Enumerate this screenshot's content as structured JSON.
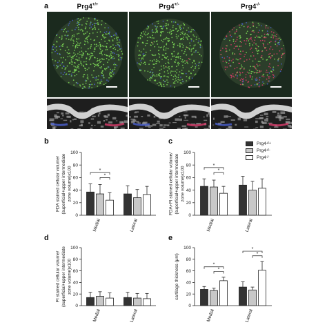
{
  "panel_labels": [
    "a",
    "b",
    "c",
    "d",
    "e"
  ],
  "genotypes": [
    {
      "base": "Prg4",
      "sup": "+/+"
    },
    {
      "base": "Prg4",
      "sup": "+/-"
    },
    {
      "base": "Prg4",
      "sup": "-/-"
    }
  ],
  "legend": {
    "items": [
      {
        "base": "Prg4",
        "sup": "+/+",
        "color": "#333333"
      },
      {
        "base": "Prg4",
        "sup": "+/-",
        "color": "#c8c8c8"
      },
      {
        "base": "Prg4",
        "sup": "-/-",
        "color": "#ffffff"
      }
    ]
  },
  "colors": {
    "micro_background": "#1b2a1e",
    "green_cells": "#7ed957",
    "blue_cells": "#4a5fd0",
    "red_cells": "#d93c6b"
  },
  "chart_data": [
    {
      "panel": "b",
      "type": "bar",
      "categories": [
        "Medial",
        "Lateral"
      ],
      "series": [
        {
          "name": "Prg4 +/+",
          "values": [
            37,
            34
          ],
          "errors": [
            13,
            13
          ]
        },
        {
          "name": "Prg4 +/-",
          "values": [
            34,
            28
          ],
          "errors": [
            15,
            13
          ]
        },
        {
          "name": "Prg4 -/-",
          "values": [
            24,
            33
          ],
          "errors": [
            12,
            13
          ]
        }
      ],
      "ylabel": [
        "FDA stained cellular volume/",
        "(superficial+upper intermediate",
        "zone volume)x100"
      ],
      "ylim": [
        0,
        100
      ],
      "yticks": [
        0,
        20,
        40,
        60,
        80,
        100
      ],
      "significance": [
        {
          "category": 0,
          "from": 0,
          "to": 2,
          "label": "*"
        },
        {
          "category": 0,
          "from": 1,
          "to": 2,
          "label": "*"
        }
      ]
    },
    {
      "panel": "c",
      "type": "bar",
      "categories": [
        "Medial",
        "Lateral"
      ],
      "series": [
        {
          "name": "Prg4 +/+",
          "values": [
            46,
            48
          ],
          "errors": [
            12,
            14
          ]
        },
        {
          "name": "Prg4 +/-",
          "values": [
            45,
            40
          ],
          "errors": [
            11,
            14
          ]
        },
        {
          "name": "Prg4 -/-",
          "values": [
            35,
            43
          ],
          "errors": [
            11,
            15
          ]
        }
      ],
      "ylabel": [
        "FDA+PI stained cellular volume/",
        "(superficial+upper intermediate",
        "zone volume)x100"
      ],
      "ylim": [
        0,
        100
      ],
      "yticks": [
        0,
        20,
        40,
        60,
        80,
        100
      ],
      "significance": [
        {
          "category": 0,
          "from": 0,
          "to": 2,
          "label": "*"
        },
        {
          "category": 0,
          "from": 1,
          "to": 2,
          "label": "*"
        }
      ]
    },
    {
      "panel": "d",
      "type": "bar",
      "categories": [
        "Medial",
        "Lateral"
      ],
      "series": [
        {
          "name": "Prg4 +/+",
          "values": [
            14,
            14
          ],
          "errors": [
            9,
            9
          ]
        },
        {
          "name": "Prg4 +/-",
          "values": [
            16,
            13
          ],
          "errors": [
            8,
            8
          ]
        },
        {
          "name": "Prg4 -/-",
          "values": [
            13,
            12
          ],
          "errors": [
            9,
            9
          ]
        }
      ],
      "ylabel": [
        "PI stained cellular volume/",
        "(superficial+upper intermediate",
        "zone volume)x100"
      ],
      "ylim": [
        0,
        100
      ],
      "yticks": [
        0,
        20,
        40,
        60,
        80,
        100
      ],
      "significance": []
    },
    {
      "panel": "e",
      "type": "bar",
      "categories": [
        "Medial",
        "Lateral"
      ],
      "series": [
        {
          "name": "Prg4 +/+",
          "values": [
            28,
            32
          ],
          "errors": [
            5,
            9
          ]
        },
        {
          "name": "Prg4 +/-",
          "values": [
            26,
            27
          ],
          "errors": [
            4,
            5
          ]
        },
        {
          "name": "Prg4 -/-",
          "values": [
            43,
            61
          ],
          "errors": [
            6,
            15
          ]
        }
      ],
      "ylabel": [
        "cartilage thickness (μm)"
      ],
      "ylim": [
        0,
        100
      ],
      "yticks": [
        0,
        20,
        40,
        60,
        80,
        100
      ],
      "significance": [
        {
          "category": 0,
          "from": 0,
          "to": 2,
          "label": "*"
        },
        {
          "category": 0,
          "from": 1,
          "to": 2,
          "label": "*"
        },
        {
          "category": 1,
          "from": 0,
          "to": 2,
          "label": "*"
        },
        {
          "category": 1,
          "from": 1,
          "to": 2,
          "label": "*"
        }
      ]
    }
  ]
}
